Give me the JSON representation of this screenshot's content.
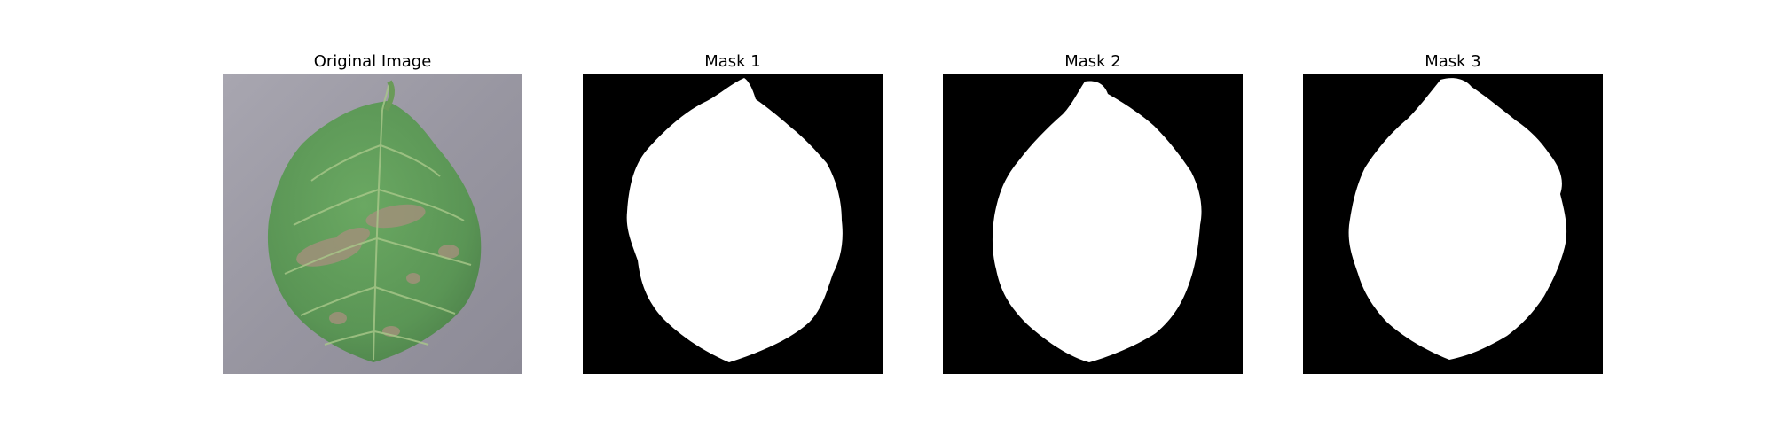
{
  "figure": {
    "panels": [
      {
        "title": "Original Image"
      },
      {
        "title": "Mask 1"
      },
      {
        "title": "Mask 2"
      },
      {
        "title": "Mask 3"
      }
    ]
  },
  "colors": {
    "background": "#ffffff",
    "mask_background": "#000000",
    "mask_foreground": "#ffffff",
    "photo_background": "#9a98a3",
    "leaf_green": "#5e9a58",
    "leaf_vein": "#a9c88a",
    "lesion": "#9c8f6e"
  }
}
